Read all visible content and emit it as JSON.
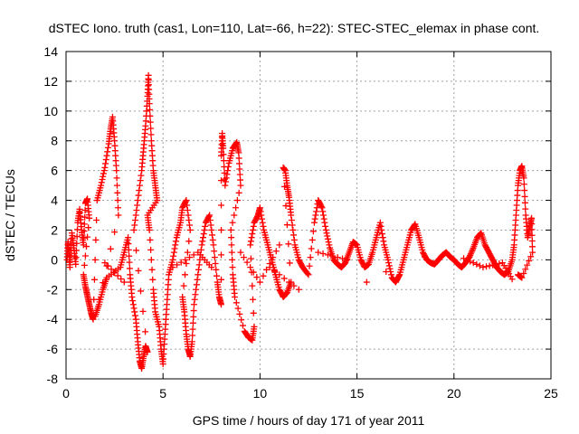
{
  "chart_data": {
    "type": "scatter",
    "title": "dSTEC Iono. truth (cas1, Lon=110, Lat=-66, h=22): STEC-STEC_elemax in phase cont.",
    "xlabel": "GPS time / hours of day 171 of year 2011",
    "ylabel": "dSTEC  / TECUs",
    "xlim": [
      0,
      25
    ],
    "ylim": [
      -8,
      14
    ],
    "xticks": [
      0,
      5,
      10,
      15,
      20,
      25
    ],
    "yticks": [
      -8,
      -6,
      -4,
      -2,
      0,
      2,
      4,
      6,
      8,
      10,
      12,
      14
    ],
    "grid": true,
    "marker": "+",
    "color": "#ff0000",
    "series": [
      {
        "values_xy": [
          [
            0.05,
            0.0
          ],
          [
            0.1,
            1.2
          ],
          [
            0.15,
            0.5
          ],
          [
            0.2,
            -0.5
          ],
          [
            0.3,
            1.8
          ],
          [
            0.4,
            0.8
          ],
          [
            0.5,
            -0.3
          ],
          [
            0.6,
            2.5
          ],
          [
            0.7,
            3.4
          ],
          [
            0.8,
            2.0
          ],
          [
            0.9,
            1.0
          ],
          [
            1.0,
            3.8
          ],
          [
            1.1,
            4.1
          ],
          [
            1.2,
            2.8
          ],
          [
            0.9,
            -1.0
          ],
          [
            1.0,
            -1.8
          ],
          [
            1.1,
            -2.4
          ],
          [
            1.2,
            -3.0
          ],
          [
            1.3,
            -3.6
          ],
          [
            1.4,
            -4.0
          ],
          [
            1.6,
            4.0
          ],
          [
            1.8,
            5.0
          ],
          [
            2.0,
            6.2
          ],
          [
            2.2,
            7.8
          ],
          [
            2.3,
            8.8
          ],
          [
            2.4,
            9.6
          ],
          [
            2.5,
            8.0
          ],
          [
            2.6,
            6.0
          ],
          [
            2.7,
            3.0
          ],
          [
            1.5,
            -3.8
          ],
          [
            1.7,
            -3.0
          ],
          [
            1.9,
            -2.0
          ],
          [
            2.1,
            -1.2
          ],
          [
            2.8,
            -0.5
          ],
          [
            3.0,
            0.5
          ],
          [
            3.2,
            1.5
          ],
          [
            3.3,
            -1.0
          ],
          [
            3.4,
            -2.5
          ],
          [
            3.6,
            -4.0
          ],
          [
            3.7,
            -5.5
          ],
          [
            3.8,
            -6.8
          ],
          [
            3.9,
            -7.3
          ],
          [
            4.0,
            -6.5
          ],
          [
            4.1,
            -5.8
          ],
          [
            4.2,
            -6.2
          ],
          [
            3.5,
            2.0
          ],
          [
            3.7,
            4.0
          ],
          [
            3.9,
            6.0
          ],
          [
            4.0,
            7.5
          ],
          [
            4.1,
            9.0
          ],
          [
            4.2,
            11.0
          ],
          [
            4.25,
            12.4
          ],
          [
            4.3,
            10.5
          ],
          [
            4.4,
            8.0
          ],
          [
            4.5,
            6.0
          ],
          [
            4.6,
            5.0
          ],
          [
            4.7,
            4.0
          ],
          [
            4.2,
            3.0
          ],
          [
            4.3,
            2.0
          ],
          [
            4.5,
            -2.0
          ],
          [
            4.6,
            -3.5
          ],
          [
            4.8,
            -4.5
          ],
          [
            4.9,
            -6.0
          ],
          [
            5.0,
            -7.0
          ],
          [
            5.1,
            -5.0
          ],
          [
            5.2,
            -3.0
          ],
          [
            5.3,
            -1.0
          ],
          [
            5.5,
            0.0
          ],
          [
            5.7,
            1.5
          ],
          [
            5.9,
            2.5
          ],
          [
            6.0,
            3.5
          ],
          [
            6.2,
            4.0
          ],
          [
            6.4,
            2.0
          ],
          [
            6.0,
            -2.5
          ],
          [
            6.1,
            -3.5
          ],
          [
            6.2,
            -5.0
          ],
          [
            6.3,
            -6.0
          ],
          [
            6.4,
            -6.5
          ],
          [
            6.5,
            -5.5
          ],
          [
            6.6,
            -3.0
          ],
          [
            6.8,
            -1.0
          ],
          [
            7.0,
            1.0
          ],
          [
            7.2,
            2.5
          ],
          [
            7.4,
            3.0
          ],
          [
            7.6,
            1.0
          ],
          [
            7.8,
            -1.5
          ],
          [
            7.9,
            -2.5
          ],
          [
            8.0,
            -3.0
          ],
          [
            8.0,
            7.0
          ],
          [
            8.05,
            8.5
          ],
          [
            8.1,
            7.5
          ],
          [
            8.2,
            5.0
          ],
          [
            8.4,
            6.5
          ],
          [
            8.6,
            7.5
          ],
          [
            8.8,
            7.9
          ],
          [
            8.9,
            7.2
          ],
          [
            9.0,
            5.0
          ],
          [
            8.5,
            2.0
          ],
          [
            8.6,
            -1.0
          ],
          [
            8.7,
            -2.5
          ],
          [
            9.2,
            -4.8
          ],
          [
            9.4,
            -5.2
          ],
          [
            9.6,
            -5.4
          ],
          [
            9.7,
            -4.5
          ],
          [
            9.5,
            1.0
          ],
          [
            9.7,
            2.5
          ],
          [
            9.9,
            3.0
          ],
          [
            10.0,
            3.5
          ],
          [
            10.2,
            2.0
          ],
          [
            10.4,
            1.0
          ],
          [
            10.6,
            0.0
          ],
          [
            10.8,
            -1.0
          ],
          [
            11.0,
            -2.0
          ],
          [
            11.2,
            -2.5
          ],
          [
            11.4,
            -2.2
          ],
          [
            11.6,
            -1.5
          ],
          [
            11.2,
            6.2
          ],
          [
            11.3,
            6.0
          ],
          [
            11.4,
            5.0
          ],
          [
            11.5,
            4.2
          ],
          [
            11.6,
            3.0
          ],
          [
            11.8,
            1.0
          ],
          [
            12.0,
            0.0
          ],
          [
            12.2,
            -0.5
          ],
          [
            12.5,
            -1.0
          ],
          [
            12.8,
            2.5
          ],
          [
            13.0,
            4.0
          ],
          [
            13.2,
            3.5
          ],
          [
            13.4,
            2.0
          ],
          [
            13.6,
            0.8
          ],
          [
            13.8,
            0.0
          ],
          [
            14.0,
            -0.3
          ],
          [
            14.2,
            -0.5
          ],
          [
            14.4,
            -0.2
          ],
          [
            14.6,
            0.5
          ],
          [
            14.8,
            1.2
          ],
          [
            15.0,
            1.0
          ],
          [
            15.2,
            0.0
          ],
          [
            15.4,
            -0.5
          ],
          [
            15.6,
            -0.3
          ],
          [
            15.8,
            0.5
          ],
          [
            16.0,
            1.5
          ],
          [
            16.2,
            2.5
          ],
          [
            16.4,
            1.0
          ],
          [
            16.6,
            0.0
          ],
          [
            16.8,
            -1.2
          ],
          [
            17.0,
            -1.5
          ],
          [
            17.2,
            -1.0
          ],
          [
            17.4,
            0.0
          ],
          [
            17.6,
            1.0
          ],
          [
            17.8,
            2.0
          ],
          [
            18.0,
            2.4
          ],
          [
            18.2,
            1.5
          ],
          [
            18.4,
            0.5
          ],
          [
            18.6,
            0.0
          ],
          [
            18.8,
            -0.2
          ],
          [
            19.0,
            -0.3
          ],
          [
            19.2,
            0.0
          ],
          [
            19.4,
            0.3
          ],
          [
            19.6,
            0.5
          ],
          [
            19.8,
            0.2
          ],
          [
            20.0,
            0.0
          ],
          [
            20.2,
            -0.3
          ],
          [
            20.4,
            -0.5
          ],
          [
            20.6,
            -0.2
          ],
          [
            20.8,
            0.2
          ],
          [
            21.0,
            0.8
          ],
          [
            21.2,
            1.5
          ],
          [
            21.4,
            1.8
          ],
          [
            21.6,
            1.0
          ],
          [
            21.8,
            0.5
          ],
          [
            22.0,
            0.0
          ],
          [
            22.2,
            -0.5
          ],
          [
            22.4,
            -0.8
          ],
          [
            22.6,
            -1.0
          ],
          [
            22.8,
            -0.8
          ],
          [
            23.0,
            0.0
          ],
          [
            23.1,
            1.0
          ],
          [
            23.2,
            3.0
          ],
          [
            23.3,
            5.0
          ],
          [
            23.4,
            6.0
          ],
          [
            23.5,
            6.3
          ],
          [
            23.6,
            5.5
          ],
          [
            23.7,
            3.0
          ],
          [
            23.8,
            1.5
          ],
          [
            23.9,
            2.2
          ],
          [
            24.0,
            2.8
          ],
          [
            24.05,
            0.5
          ],
          [
            23.5,
            -1.2
          ],
          [
            23.3,
            -1.0
          ],
          [
            15.5,
            -1.5
          ],
          [
            5.5,
            -0.5
          ],
          [
            6.8,
            0.5
          ],
          [
            7.5,
            -0.5
          ],
          [
            2.0,
            -0.2
          ],
          [
            3.0,
            -1.5
          ],
          [
            10.5,
            -0.5
          ],
          [
            12.0,
            -2.0
          ],
          [
            9.0,
            0.5
          ],
          [
            10.0,
            -1.5
          ],
          [
            11.0,
            1.0
          ],
          [
            13.0,
            0.5
          ],
          [
            14.5,
            0.0
          ],
          [
            16.5,
            -0.8
          ],
          [
            18.5,
            0.2
          ],
          [
            20.5,
            0.1
          ],
          [
            21.5,
            -0.5
          ],
          [
            22.5,
            -0.2
          ],
          [
            23.0,
            -1.3
          ]
        ]
      }
    ]
  }
}
